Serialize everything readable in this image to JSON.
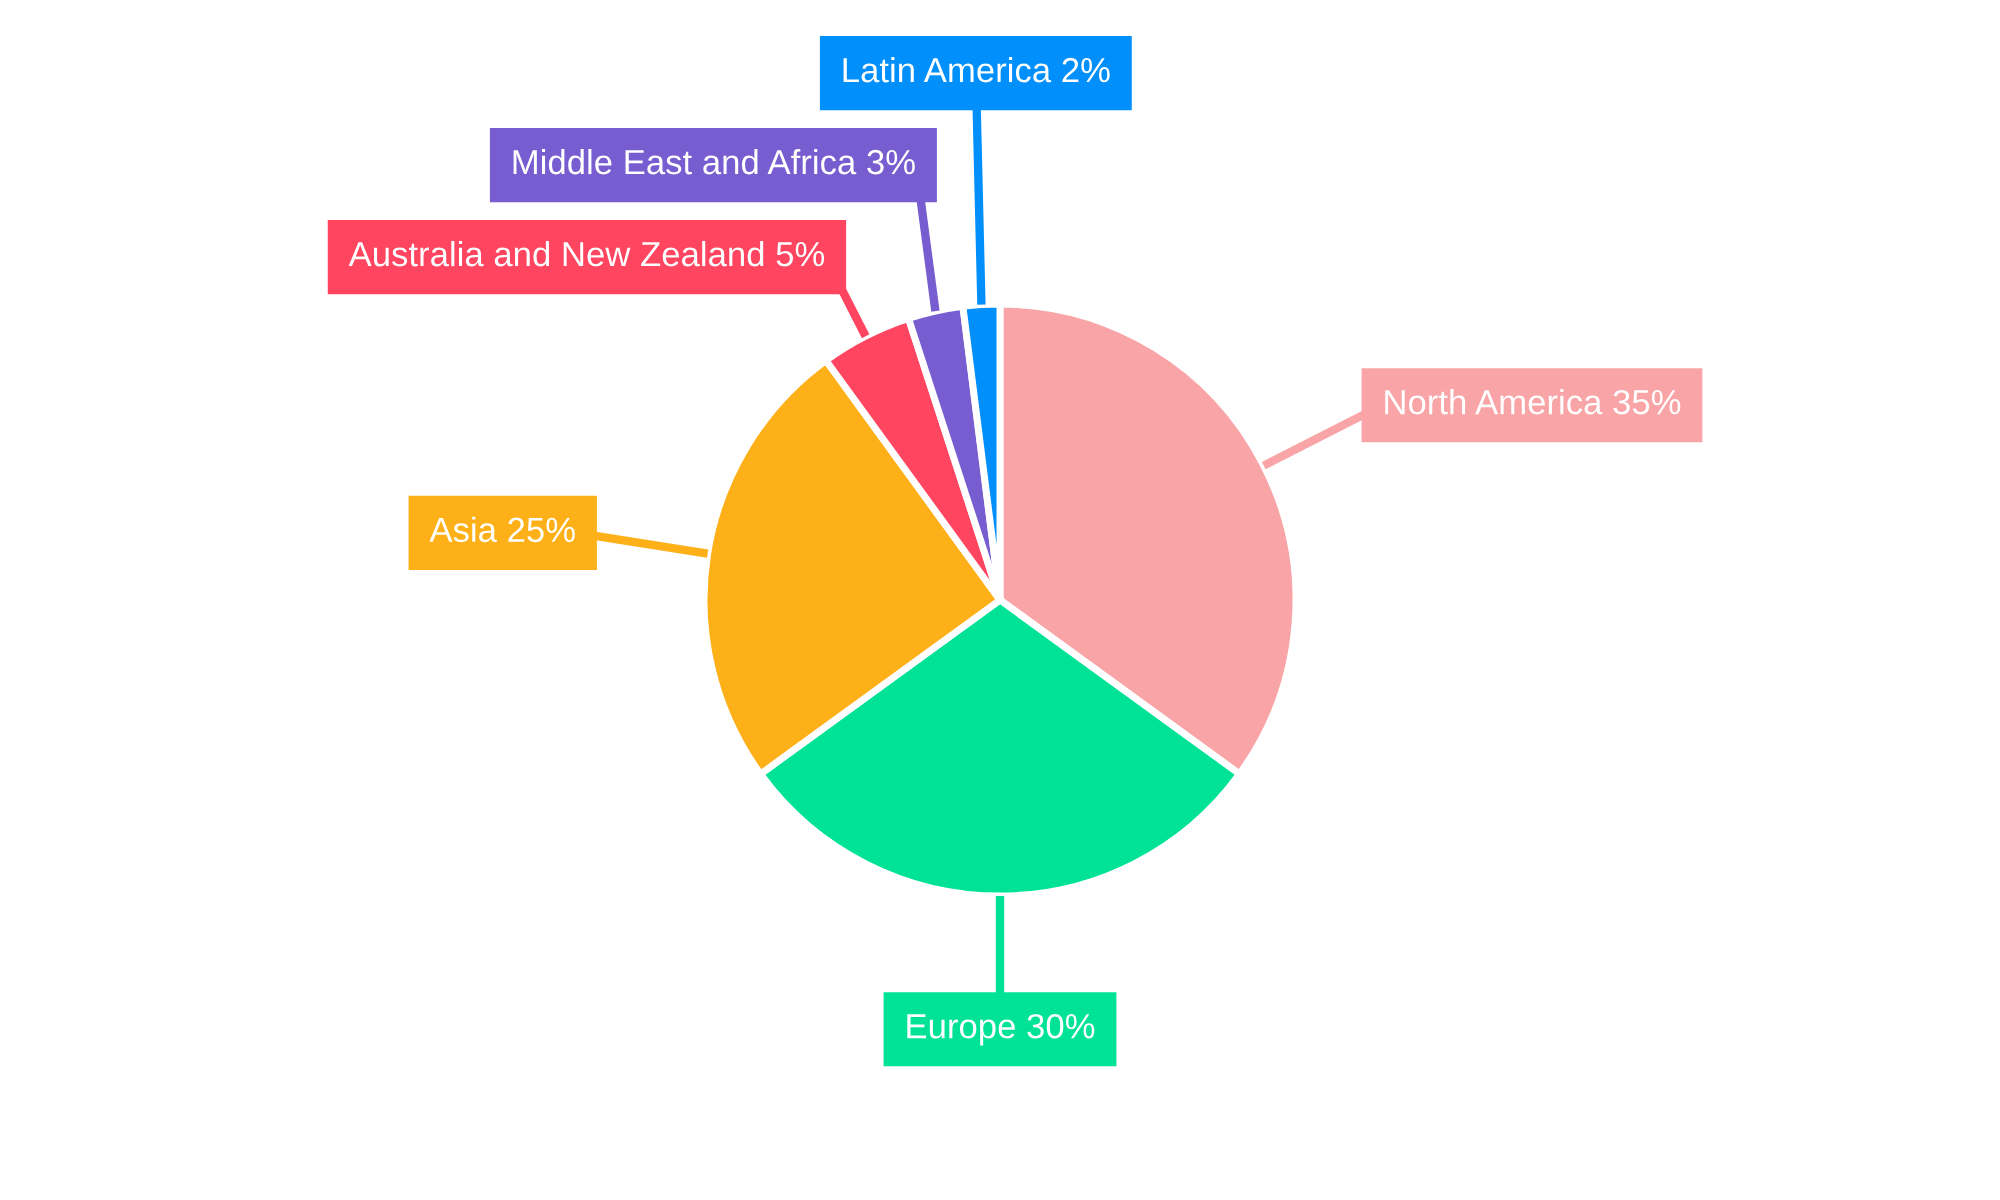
{
  "chart_data": {
    "type": "pie",
    "categories": [
      "North America",
      "Europe",
      "Asia",
      "Australia and New Zealand",
      "Middle East and Africa",
      "Latin America"
    ],
    "values": [
      35,
      30,
      25,
      5,
      3,
      2
    ],
    "value_labels": [
      "35%",
      "30%",
      "25%",
      "5%",
      "3%",
      "2%"
    ],
    "colors": [
      "#f9a5a7",
      "#00e396",
      "#feb019",
      "#ff4560",
      "#775dd0",
      "#008ffb"
    ],
    "legend": false
  }
}
